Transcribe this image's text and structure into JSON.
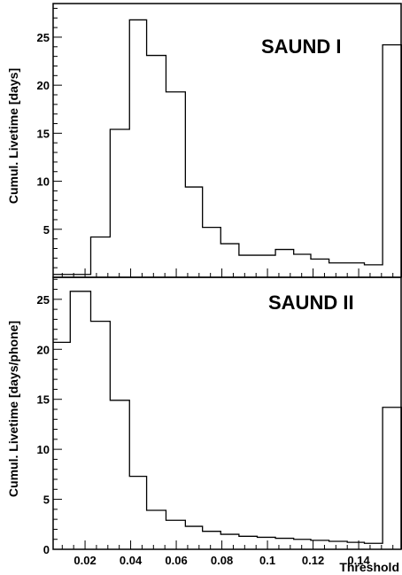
{
  "chart_data": [
    {
      "type": "histogram",
      "title": "SAUND I",
      "ylabel": "Cumul. Livetime [days]",
      "xlabel": "",
      "xlim": [
        0.006,
        0.159
      ],
      "ylim": [
        0,
        28.5
      ],
      "yticks": [
        5,
        10,
        15,
        20,
        25
      ],
      "bin_edges": [
        0.006,
        0.0135,
        0.0225,
        0.031,
        0.0395,
        0.047,
        0.0555,
        0.064,
        0.0715,
        0.0795,
        0.0875,
        0.0955,
        0.1035,
        0.1115,
        0.119,
        0.127,
        0.135,
        0.1425,
        0.1505,
        0.159
      ],
      "values": [
        0.3,
        0.3,
        4.2,
        15.4,
        26.8,
        23.1,
        19.3,
        9.4,
        5.2,
        3.5,
        2.3,
        2.3,
        2.9,
        2.4,
        1.9,
        1.5,
        1.5,
        1.3,
        24.2
      ]
    },
    {
      "type": "histogram",
      "title": "SAUND II",
      "ylabel": "Cumul. Livetime [days/phone]",
      "xlabel": "Threshold",
      "xlim": [
        0.006,
        0.159
      ],
      "ylim": [
        0,
        27.2
      ],
      "yticks": [
        0,
        5,
        10,
        15,
        20,
        25
      ],
      "xticks": [
        "0.02",
        "0.04",
        "0.06",
        "0.08",
        "0.1",
        "0.12",
        "0.14"
      ],
      "bin_edges": [
        0.006,
        0.0135,
        0.0225,
        0.031,
        0.0395,
        0.047,
        0.0555,
        0.064,
        0.0715,
        0.0795,
        0.0875,
        0.0955,
        0.1035,
        0.1115,
        0.119,
        0.127,
        0.135,
        0.1425,
        0.1505,
        0.159
      ],
      "values": [
        20.7,
        25.8,
        22.8,
        14.9,
        7.3,
        3.9,
        2.9,
        2.3,
        1.8,
        1.5,
        1.3,
        1.2,
        1.1,
        1.0,
        0.9,
        0.8,
        0.7,
        0.6,
        14.2
      ]
    }
  ]
}
